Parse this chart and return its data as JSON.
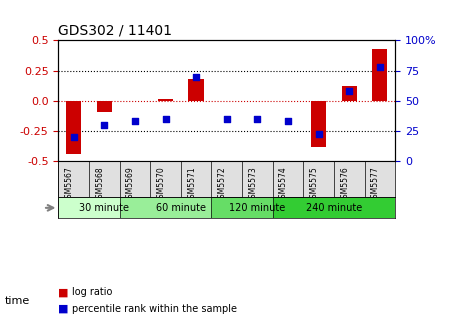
{
  "title": "GDS302 / 11401",
  "samples": [
    "GSM5567",
    "GSM5568",
    "GSM5569",
    "GSM5570",
    "GSM5571",
    "GSM5572",
    "GSM5573",
    "GSM5574",
    "GSM5575",
    "GSM5576",
    "GSM5577"
  ],
  "log_ratio": [
    -0.44,
    -0.09,
    0.0,
    0.01,
    0.18,
    0.0,
    0.0,
    0.0,
    -0.38,
    0.12,
    0.43
  ],
  "percentile": [
    20,
    30,
    33,
    35,
    70,
    35,
    35,
    33,
    22,
    58,
    78
  ],
  "groups": [
    {
      "label": "30 minute",
      "start": 0,
      "end": 2,
      "color": "#ccffcc"
    },
    {
      "label": "60 minute",
      "start": 2,
      "end": 5,
      "color": "#99ee99"
    },
    {
      "label": "120 minute",
      "start": 5,
      "end": 7,
      "color": "#66dd66"
    },
    {
      "label": "240 minute",
      "start": 7,
      "end": 10,
      "color": "#33cc33"
    }
  ],
  "bar_color": "#cc0000",
  "dot_color": "#0000cc",
  "ylim_left": [
    -0.5,
    0.5
  ],
  "ylim_right": [
    0,
    100
  ],
  "yticks_left": [
    -0.5,
    -0.25,
    0.0,
    0.25,
    0.5
  ],
  "yticks_right": [
    0,
    25,
    50,
    75,
    100
  ],
  "bg_color": "#ffffff",
  "tick_label_color_left": "#cc0000",
  "tick_label_color_right": "#0000cc",
  "grid_color": "#000000",
  "time_label": "time",
  "legend_log_ratio": "log ratio",
  "legend_percentile": "percentile rank within the sample"
}
